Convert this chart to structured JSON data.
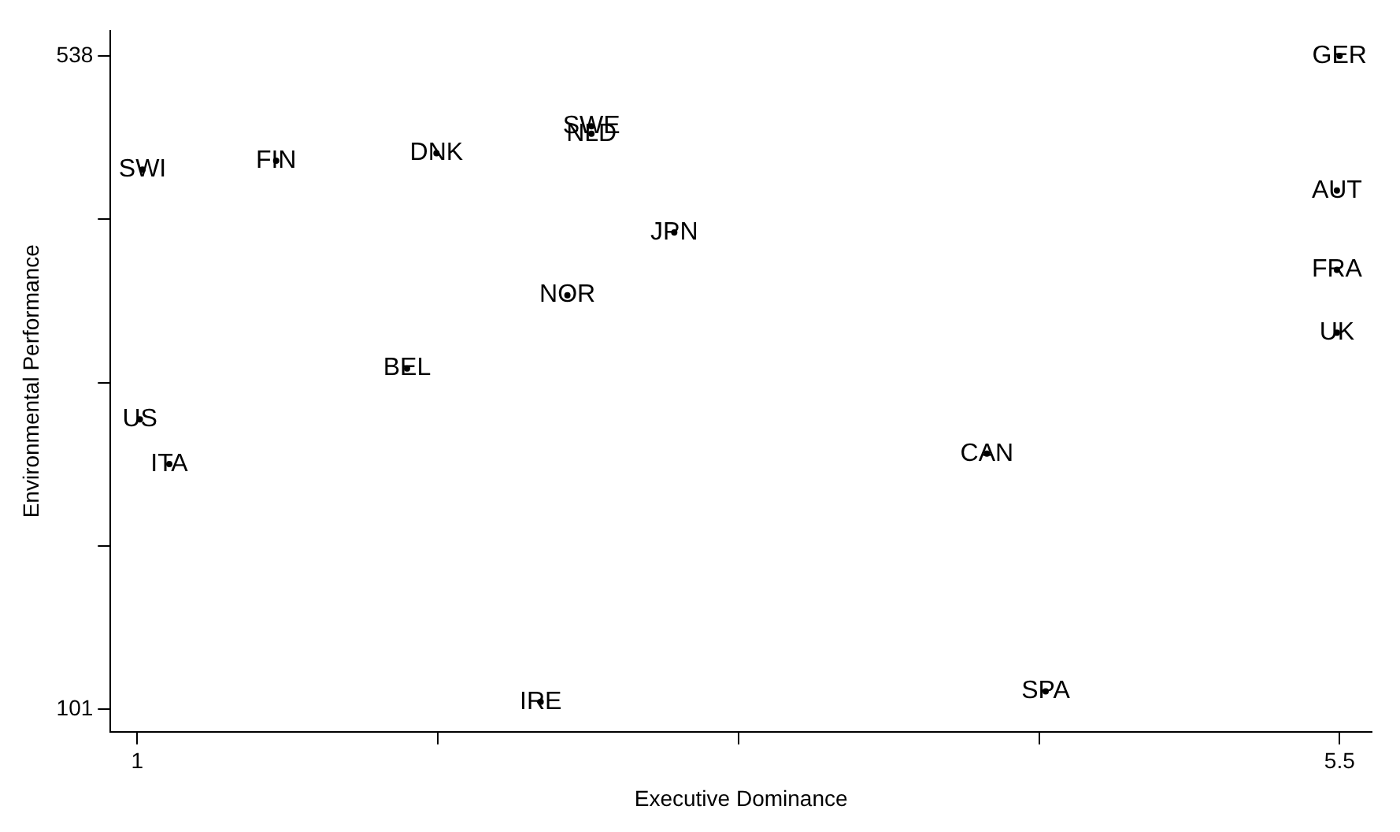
{
  "chart_data": {
    "type": "scatter",
    "xlabel": "Executive Dominance",
    "ylabel": "Environmental Performance",
    "xlim": [
      0.9,
      5.62
    ],
    "ylim": [
      86,
      555
    ],
    "xticks": [
      1,
      {
        "value": 2.125,
        "label": null
      },
      {
        "value": 3.25,
        "label": null
      },
      {
        "value": 4.375,
        "label": null
      },
      5.5
    ],
    "yticks": [
      101,
      {
        "value": 210.25,
        "label": null
      },
      {
        "value": 319.5,
        "label": null
      },
      {
        "value": 428.75,
        "label": null
      },
      538
    ],
    "grid": false,
    "legend": false,
    "series": [
      {
        "color": "#000000",
        "x": [
          5.5,
          2.7,
          2.7,
          2.12,
          5.49,
          1.52,
          1.02,
          3.01,
          5.49,
          2.61,
          5.49,
          2.01,
          1.01,
          1.12,
          4.18,
          2.51,
          4.4
        ],
        "values": [
          538,
          491,
          486,
          473,
          448,
          468,
          462,
          420,
          395,
          378,
          353,
          329,
          295,
          265,
          272,
          106,
          113
        ],
        "value_labels": [
          "GER",
          "SWE",
          "NLD",
          "DNK",
          "AUT",
          "FIN",
          "SWI",
          "JPN",
          "FRA",
          "NOR",
          "UK",
          "BEL",
          "US",
          "ITA",
          "CAN",
          "IRE",
          "SPA"
        ]
      }
    ]
  }
}
